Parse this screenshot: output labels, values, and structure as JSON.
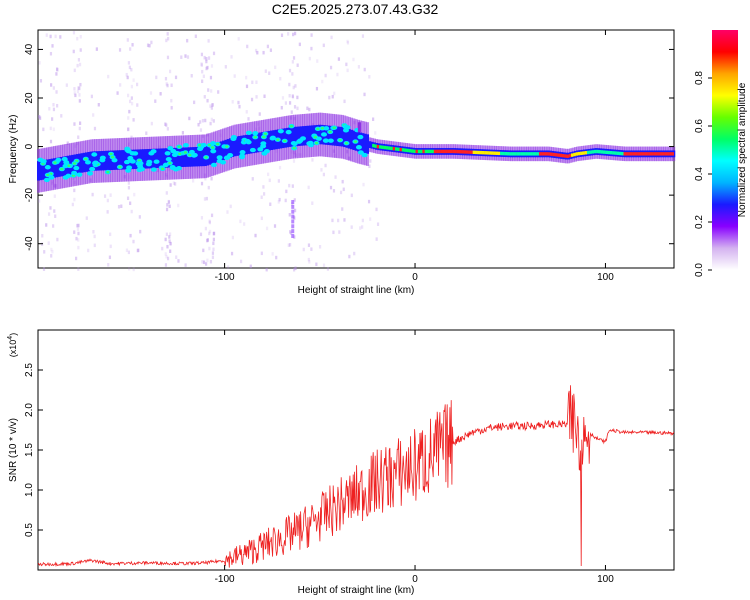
{
  "title": "C2E5.2025.273.07.43.G32",
  "chart_data": [
    {
      "type": "heatmap",
      "xlabel": "Height of straight line (km)",
      "ylabel": "Frequency (Hz)",
      "xlim": [
        -198,
        136
      ],
      "ylim": [
        -50,
        48
      ],
      "xticks": [
        -100,
        0,
        100
      ],
      "yticks": [
        -40,
        -20,
        0,
        20,
        40
      ],
      "colorbar": {
        "label": "Normalized spectral amplitude",
        "ticks": [
          0.0,
          0.2,
          0.4,
          0.6,
          0.8
        ],
        "range": [
          0,
          1
        ],
        "colors": [
          "#ffffff",
          "#d4b2f0",
          "#8800ff",
          "#1a1aff",
          "#00b4ff",
          "#00ffff",
          "#00ff66",
          "#66ff00",
          "#ffff00",
          "#ffa500",
          "#ff0000",
          "#ff0066"
        ]
      },
      "ridge": {
        "x": [
          -198,
          -170,
          -140,
          -110,
          -95,
          -80,
          -65,
          -50,
          -38,
          -30,
          -20,
          -10,
          0,
          20,
          50,
          70,
          80,
          85,
          95,
          110,
          136
        ],
        "y": [
          -10,
          -6,
          -5,
          -4,
          0,
          2,
          4,
          5,
          4,
          2,
          0,
          -1,
          -2,
          -2,
          -3,
          -3,
          -4,
          -3,
          -2,
          -3,
          -3
        ]
      }
    },
    {
      "type": "line",
      "xlabel": "Height of straight line (km)",
      "ylabel": "SNR (10 * v/v)",
      "scale_label": "(x10",
      "scale_exp": "4",
      "xlim": [
        -198,
        136
      ],
      "ylim": [
        0,
        3.0
      ],
      "xticks": [
        -100,
        0,
        100
      ],
      "yticks": [
        0.5,
        1.0,
        1.5,
        2.0,
        2.5
      ],
      "line_color": "#ee2020",
      "series": [
        {
          "x": [
            -198,
            -180,
            -170,
            -160,
            -140,
            -120,
            -110,
            -100,
            -90,
            -80,
            -70,
            -60,
            -50,
            -40,
            -30,
            -20,
            -10,
            0,
            10,
            20,
            30,
            40,
            50,
            60,
            70,
            80,
            85,
            87,
            90,
            95,
            100,
            102,
            110,
            120,
            136
          ],
          "y": [
            0.07,
            0.08,
            0.12,
            0.08,
            0.09,
            0.08,
            0.09,
            0.12,
            0.2,
            0.3,
            0.4,
            0.5,
            0.65,
            0.8,
            0.95,
            1.1,
            1.2,
            1.3,
            1.45,
            1.6,
            1.72,
            1.78,
            1.8,
            1.8,
            1.82,
            1.82,
            1.8,
            1.7,
            1.75,
            1.65,
            1.6,
            1.75,
            1.72,
            1.72,
            1.71
          ]
        }
      ]
    }
  ]
}
